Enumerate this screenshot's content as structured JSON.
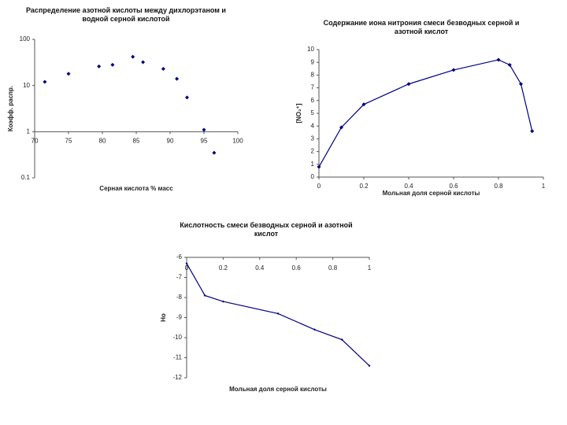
{
  "chart_data": [
    {
      "type": "scatter",
      "title": "Распределение азотной кислоты между дихлорэтаном и водной серной кислотой",
      "x_label": "Серная кислота % масс",
      "y_label": "Коэфф. распр.",
      "log_y": true,
      "color": "#000080",
      "x": [
        71.5,
        75,
        79.5,
        81.5,
        84.5,
        86,
        89,
        91,
        92.5,
        95,
        96.5
      ],
      "values": [
        12,
        18,
        26,
        28,
        42,
        32,
        23,
        14,
        5.5,
        1.1,
        0.35
      ],
      "xlim": [
        70,
        100
      ],
      "xticks": [
        70,
        75,
        80,
        85,
        90,
        95,
        100
      ],
      "ylim": [
        0.1,
        100
      ],
      "yticks": [
        100,
        10,
        1,
        0.1
      ]
    },
    {
      "type": "line",
      "title": "Содержание иона нитрония смеси безводных серной и азотной кислот",
      "x_label": "Мольная доля серной кислоты",
      "y_label": "[NO₂⁺]",
      "color": "#000080",
      "x": [
        0,
        0.1,
        0.2,
        0.4,
        0.6,
        0.8,
        0.85,
        0.9,
        0.95
      ],
      "values": [
        0.8,
        3.9,
        5.7,
        7.3,
        8.4,
        9.2,
        8.8,
        7.3,
        3.6
      ],
      "xlim": [
        0,
        1
      ],
      "xticks": [
        0,
        0.2,
        0.4,
        0.6,
        0.8,
        1
      ],
      "ylim": [
        0,
        10
      ],
      "yticks": [
        0,
        1,
        2,
        3,
        4,
        5,
        6,
        7,
        8,
        9,
        10
      ]
    },
    {
      "type": "line",
      "title": "Кислотность смеси безводных серной и азотной кислот",
      "x_label": "Мольная доля серной кислоты",
      "y_label": "Ho",
      "color": "#000080",
      "x_axis_position": "top",
      "x": [
        0,
        0.1,
        0.2,
        0.5,
        0.7,
        0.85,
        1
      ],
      "values": [
        -6.3,
        -7.9,
        -8.2,
        -8.8,
        -9.6,
        -10.1,
        -11.4
      ],
      "xlim": [
        0,
        1
      ],
      "xticks": [
        0,
        0.2,
        0.4,
        0.6,
        0.8,
        1
      ],
      "ylim": [
        -12,
        -6
      ],
      "yticks": [
        -6,
        -7,
        -8,
        -9,
        -10,
        -11,
        -12
      ]
    }
  ]
}
